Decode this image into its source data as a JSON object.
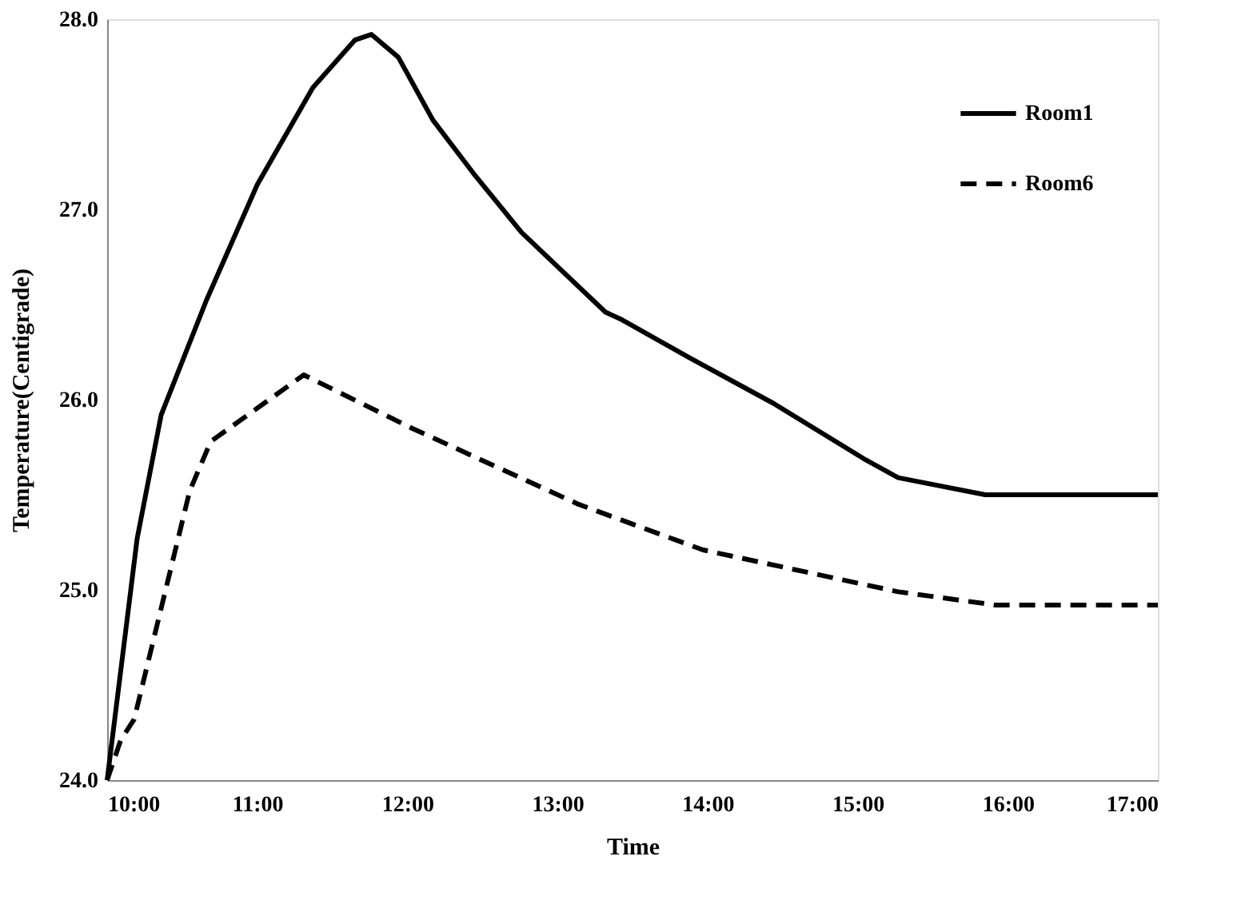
{
  "chart_data": {
    "type": "line",
    "xlabel": "Time",
    "ylabel": "Temperature(Centigrade)",
    "xlim": [
      10,
      17
    ],
    "xticks": [
      {
        "value": 10,
        "label": "10:00"
      },
      {
        "value": 11,
        "label": "11:00"
      },
      {
        "value": 12,
        "label": "12:00"
      },
      {
        "value": 13,
        "label": "13:00"
      },
      {
        "value": 14,
        "label": "14:00"
      },
      {
        "value": 15,
        "label": "15:00"
      },
      {
        "value": 16,
        "label": "16:00"
      },
      {
        "value": 17,
        "label": "17:00"
      }
    ],
    "ylim": [
      24,
      28
    ],
    "yticks": [
      {
        "value": 24,
        "label": "24.0"
      },
      {
        "value": 25,
        "label": "25.0"
      },
      {
        "value": 26,
        "label": "26.0"
      },
      {
        "value": 27,
        "label": "27.0"
      },
      {
        "value": 28,
        "label": "28.0"
      }
    ],
    "grid": false,
    "legend": "top right",
    "marker": "none",
    "series": [
      {
        "name": "Room1",
        "color": "#000000",
        "line_style": "solid",
        "x": [
          10,
          10.2,
          10.36,
          10.66,
          11.0,
          11.37,
          11.65,
          11.76,
          11.94,
          12.17,
          12.44,
          12.76,
          13.32,
          13.43,
          13.88,
          14.44,
          15.04,
          15.27,
          15.85,
          17
        ],
        "values": [
          24.0,
          25.27,
          25.92,
          26.52,
          27.13,
          27.64,
          27.89,
          27.92,
          27.8,
          27.47,
          27.19,
          26.88,
          26.46,
          26.42,
          26.22,
          25.98,
          25.69,
          25.59,
          25.5,
          25.5
        ]
      },
      {
        "name": "Room6",
        "color": "#000000",
        "line_style": "dashed",
        "x": [
          10,
          10.09,
          10.18,
          10.55,
          10.69,
          11.31,
          12.03,
          13.14,
          13.97,
          15.27,
          15.92,
          17
        ],
        "values": [
          24.0,
          24.21,
          24.32,
          25.52,
          25.78,
          26.13,
          25.85,
          25.45,
          25.21,
          24.99,
          24.92,
          24.92
        ]
      }
    ]
  }
}
